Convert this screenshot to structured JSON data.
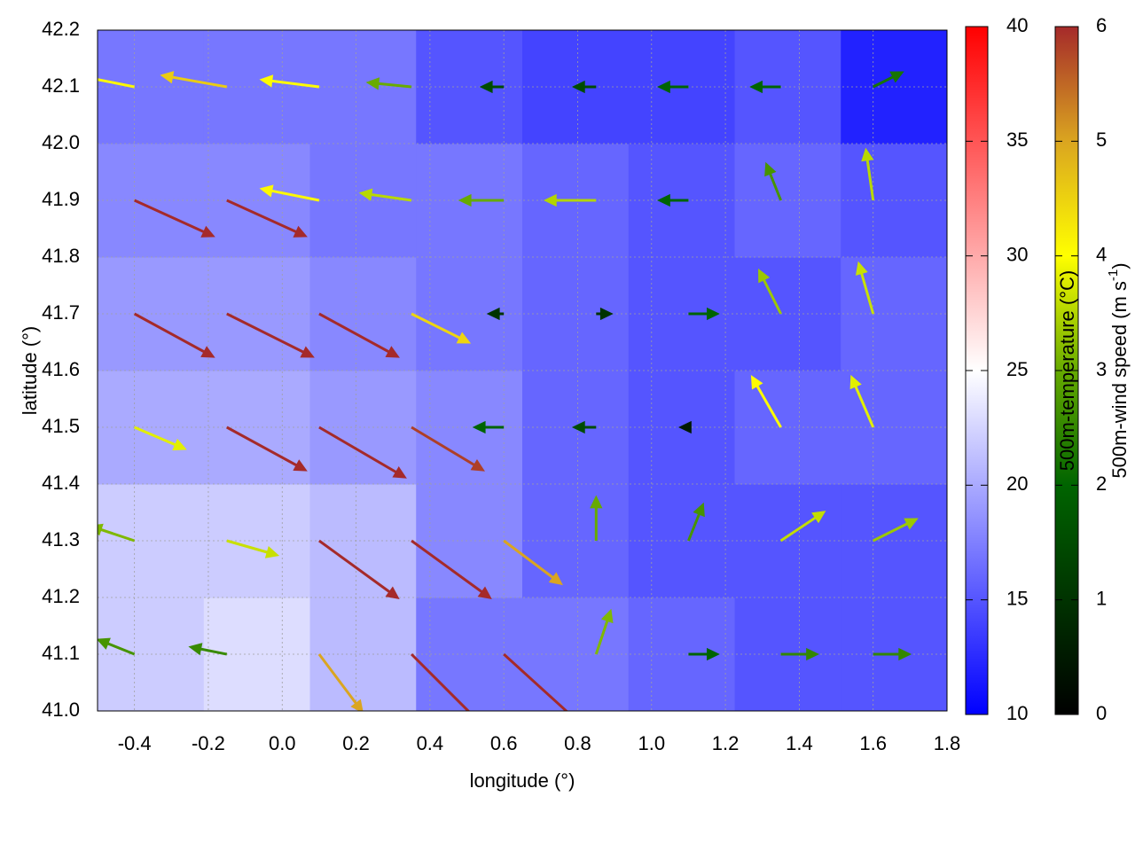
{
  "chart_data": {
    "type": "quiver",
    "xlabel": "longitude (°)",
    "ylabel": "latitude (°)",
    "xlim": [
      -0.5,
      1.8
    ],
    "ylim": [
      41.0,
      42.2
    ],
    "xticks": [
      -0.4,
      -0.2,
      {
        "value": 0,
        "label": "0.0"
      },
      0.2,
      0.4,
      0.6,
      0.8,
      {
        "value": 1,
        "label": "1.0"
      },
      1.2,
      1.4,
      1.6,
      1.8
    ],
    "yticks": [
      {
        "value": 41,
        "label": "41.0"
      },
      41.1,
      41.2,
      41.3,
      41.4,
      41.5,
      41.6,
      41.7,
      41.8,
      41.9,
      {
        "value": 42,
        "label": "42.0"
      },
      42.1,
      42.2
    ],
    "grid": true,
    "temperature": {
      "label": "500m-temperature (°C)",
      "lim": [
        10,
        40
      ],
      "ticks": [
        10,
        15,
        20,
        25,
        30,
        35,
        40
      ],
      "colors": [
        "#0000ff",
        "#ffffff",
        "#ff0000"
      ],
      "x": [
        -0.356,
        -0.069,
        0.219,
        0.506,
        0.794,
        1.081,
        1.369,
        1.656
      ],
      "y": [
        41.1,
        41.3,
        41.5,
        41.7,
        41.9,
        42.1
      ],
      "values": [
        [
          22,
          23,
          21,
          17,
          17,
          16,
          15,
          15
        ],
        [
          22,
          22,
          21,
          18,
          16,
          15,
          15,
          15
        ],
        [
          20,
          20,
          19,
          18,
          16,
          15,
          16,
          16
        ],
        [
          19,
          19,
          18,
          17,
          16,
          15,
          15,
          16
        ],
        [
          18,
          18,
          17,
          17,
          16,
          15,
          16,
          15
        ],
        [
          17,
          17,
          17,
          15,
          14,
          14,
          15,
          12
        ]
      ]
    },
    "wind": {
      "label": [
        "500m-wind speed (m s",
        "-1",
        ")"
      ],
      "lim": [
        0,
        6
      ],
      "ticks": [
        0,
        1,
        2,
        3,
        4,
        5,
        6
      ],
      "colors": [
        "#000000",
        "#003300",
        "#006400",
        "#66aa00",
        "#ffff00",
        "#daa520",
        "#a52a2a"
      ]
    },
    "vectors": {
      "x": [
        -0.4,
        -0.15,
        0.1,
        0.35,
        0.6,
        0.85,
        1.1,
        1.35,
        1.6,
        -0.4,
        -0.15,
        0.1,
        0.35,
        0.6,
        0.85,
        1.1,
        1.35,
        1.6,
        -0.4,
        -0.15,
        0.1,
        0.35,
        0.6,
        0.85,
        1.1,
        1.35,
        1.6,
        -0.4,
        -0.15,
        0.1,
        0.35,
        0.6,
        0.85,
        1.1,
        1.35,
        1.6,
        -0.4,
        -0.15,
        0.1,
        0.35,
        0.6,
        0.85,
        1.1,
        1.35,
        1.6,
        -0.4,
        -0.15,
        0.1,
        0.35,
        0.6,
        0.85,
        1.1,
        1.35,
        1.6
      ],
      "y": [
        41.1,
        41.1,
        41.1,
        41.1,
        41.1,
        41.1,
        41.1,
        41.1,
        41.1,
        41.3,
        41.3,
        41.3,
        41.3,
        41.3,
        41.3,
        41.3,
        41.3,
        41.3,
        41.5,
        41.5,
        41.5,
        41.5,
        41.5,
        41.5,
        41.5,
        41.5,
        41.5,
        41.7,
        41.7,
        41.7,
        41.7,
        41.7,
        41.7,
        41.7,
        41.7,
        41.7,
        41.9,
        41.9,
        41.9,
        41.9,
        41.9,
        41.9,
        41.9,
        41.9,
        41.9,
        42.1,
        42.1,
        42.1,
        42.1,
        42.1,
        42.1,
        42.1,
        42.1,
        42.1
      ],
      "u": [
        -2.5,
        -2.5,
        3,
        5,
        5.5,
        1,
        2,
        2.5,
        2.5,
        -3,
        3.5,
        5.5,
        5.5,
        4,
        0,
        1,
        3,
        3,
        3.5,
        5.5,
        6,
        5,
        -2,
        -1.5,
        -0.5,
        -2,
        -1.5,
        5.5,
        6,
        5.5,
        4,
        -1,
        1,
        2,
        -1.5,
        -1,
        5.5,
        5.5,
        -4,
        -3.5,
        -3,
        -3.5,
        -2,
        -1,
        -0.5,
        -4,
        -4.5,
        -4,
        -3,
        -1.5,
        -1.5,
        -2,
        -2,
        2
      ],
      "v": [
        1,
        0.5,
        -4,
        -5,
        -5,
        3,
        0,
        0,
        0,
        1,
        -1,
        -4,
        -4,
        -3,
        3,
        2.5,
        2,
        1.5,
        -1.5,
        -3,
        -3.5,
        -3,
        0,
        0,
        0,
        3.5,
        3.5,
        -3,
        -3,
        -3,
        -2,
        0,
        0,
        0,
        3,
        3.5,
        -2.5,
        -2.5,
        0.8,
        0.5,
        0,
        0,
        0,
        2.5,
        3.5,
        0.8,
        0.8,
        0.5,
        0.3,
        0,
        0,
        0,
        0,
        1
      ]
    }
  }
}
